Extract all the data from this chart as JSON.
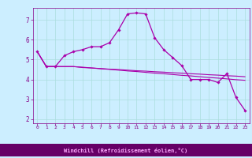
{
  "background_color": "#cceeff",
  "plot_bg_color": "#cceeff",
  "grid_color": "#aadddd",
  "line_color": "#aa00aa",
  "marker_color": "#aa00aa",
  "xlabel": "Windchill (Refroidissement éolien,°C)",
  "xlabel_color": "#cc00cc",
  "xlabel_bg": "#8800aa",
  "xlim": [
    -0.5,
    23.5
  ],
  "ylim": [
    1.8,
    7.6
  ],
  "yticks": [
    2,
    3,
    4,
    5,
    6,
    7
  ],
  "xticks": [
    0,
    1,
    2,
    3,
    4,
    5,
    6,
    7,
    8,
    9,
    10,
    11,
    12,
    13,
    14,
    15,
    16,
    17,
    18,
    19,
    20,
    21,
    22,
    23
  ],
  "series1_x": [
    0,
    1,
    2,
    3,
    4,
    5,
    6,
    7,
    8,
    9,
    10,
    11,
    12,
    13,
    14,
    15,
    16,
    17,
    18,
    19,
    20,
    21,
    22,
    23
  ],
  "series1_y": [
    5.4,
    4.65,
    4.65,
    5.2,
    5.4,
    5.5,
    5.65,
    5.65,
    5.85,
    6.5,
    7.3,
    7.35,
    7.3,
    6.1,
    5.5,
    5.1,
    4.7,
    4.0,
    4.0,
    4.0,
    3.85,
    4.3,
    3.1,
    2.45
  ],
  "series2_x": [
    0,
    1,
    2,
    3,
    4,
    5,
    6,
    7,
    8,
    9,
    10,
    11,
    12,
    13,
    14,
    15,
    16,
    17,
    18,
    19,
    20,
    21,
    22,
    23
  ],
  "series2_y": [
    5.4,
    4.65,
    4.65,
    4.65,
    4.65,
    4.6,
    4.58,
    4.55,
    4.52,
    4.5,
    4.47,
    4.44,
    4.42,
    4.39,
    4.37,
    4.34,
    4.32,
    4.29,
    4.27,
    4.24,
    4.22,
    4.19,
    4.17,
    4.14
  ],
  "series3_x": [
    0,
    1,
    2,
    3,
    4,
    5,
    6,
    7,
    8,
    9,
    10,
    11,
    12,
    13,
    14,
    15,
    16,
    17,
    18,
    19,
    20,
    21,
    22,
    23
  ],
  "series3_y": [
    5.4,
    4.65,
    4.65,
    4.65,
    4.65,
    4.62,
    4.58,
    4.54,
    4.51,
    4.47,
    4.43,
    4.4,
    4.36,
    4.32,
    4.29,
    4.25,
    4.21,
    4.18,
    4.14,
    4.1,
    4.07,
    4.03,
    3.99,
    3.96
  ]
}
